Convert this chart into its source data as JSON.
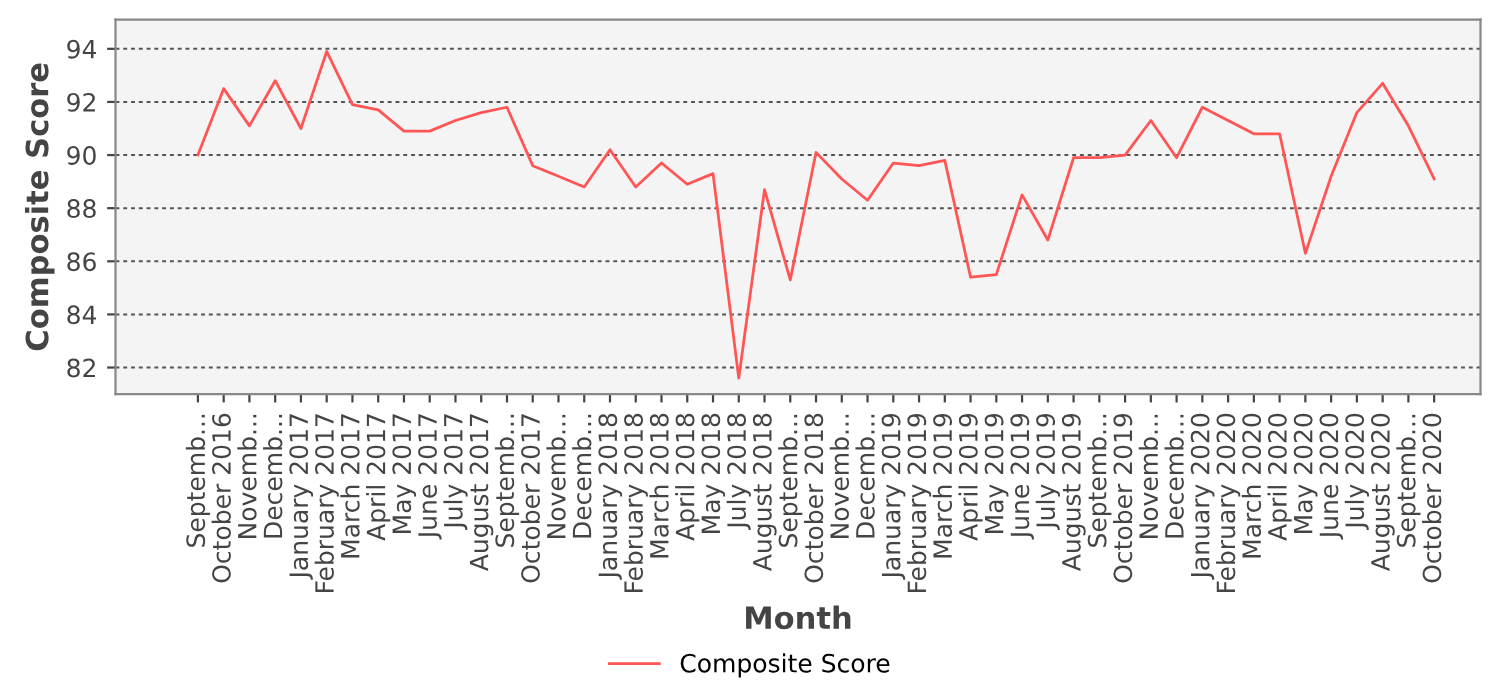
{
  "chart_data": {
    "type": "line",
    "xlabel": "Month",
    "ylabel": "Composite Score",
    "categories": [
      "Septemb...",
      "October 2016",
      "Novemb...",
      "Decemb...",
      "January 2017",
      "February 2017",
      "March 2017",
      "April 2017",
      "May 2017",
      "June 2017",
      "July 2017",
      "August 2017",
      "Septemb...",
      "October 2017",
      "Novemb...",
      "Decemb...",
      "January 2018",
      "February 2018",
      "March 2018",
      "April 2018",
      "May 2018",
      "July 2018",
      "August 2018",
      "Septemb...",
      "October 2018",
      "Novemb...",
      "Decemb...",
      "January 2019",
      "February 2019",
      "March 2019",
      "April 2019",
      "May 2019",
      "June 2019",
      "July 2019",
      "August 2019",
      "Septemb...",
      "October 2019",
      "Novemb...",
      "Decemb...",
      "January 2020",
      "February 2020",
      "March 2020",
      "April 2020",
      "May 2020",
      "June 2020",
      "July 2020",
      "August 2020",
      "Septemb...",
      "October 2020"
    ],
    "series": [
      {
        "name": "Composite Score",
        "color": "#ff5555",
        "values": [
          90.0,
          92.5,
          91.1,
          92.8,
          91.0,
          93.9,
          91.9,
          91.7,
          90.9,
          90.9,
          91.3,
          91.6,
          91.8,
          89.6,
          89.2,
          88.8,
          90.2,
          88.8,
          89.7,
          88.9,
          89.3,
          81.6,
          88.7,
          85.3,
          90.1,
          89.1,
          88.3,
          89.7,
          89.6,
          89.8,
          85.4,
          85.5,
          88.5,
          86.8,
          89.9,
          89.9,
          90.0,
          91.3,
          89.9,
          91.8,
          91.3,
          90.8,
          90.8,
          86.3,
          89.2,
          91.6,
          92.7,
          91.1,
          89.1
        ]
      }
    ],
    "ylim": [
      81,
      95.1
    ],
    "yticks": [
      82,
      84,
      86,
      88,
      90,
      92,
      94
    ],
    "grid": "y",
    "legend": "bottom",
    "marker": "none",
    "line_style": "solid"
  }
}
